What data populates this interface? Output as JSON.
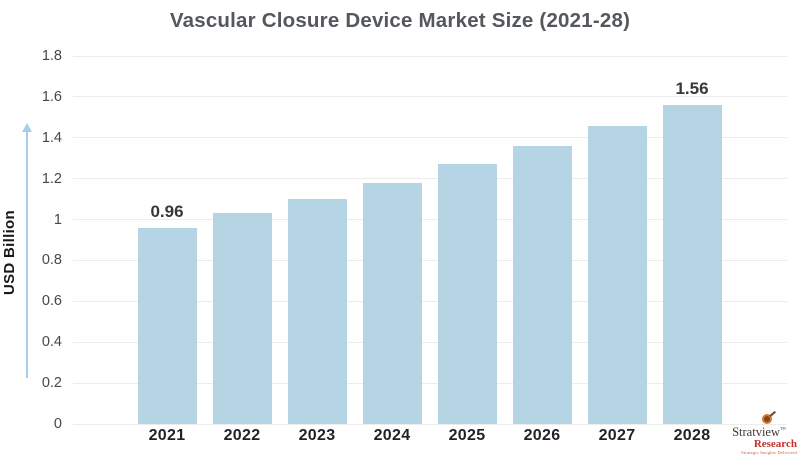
{
  "chart_data": {
    "type": "bar",
    "title": "Vascular Closure Device Market Size (2021-28)",
    "xlabel": "",
    "ylabel": "USD Billion",
    "categories": [
      "2021",
      "2022",
      "2023",
      "2024",
      "2025",
      "2026",
      "2027",
      "2028"
    ],
    "values": [
      0.96,
      1.03,
      1.1,
      1.18,
      1.27,
      1.36,
      1.46,
      1.56
    ],
    "bar_labels": [
      "0.96",
      "",
      "",
      "",
      "",
      "",
      "",
      "1.56"
    ],
    "ylim": [
      0,
      1.8
    ],
    "ytick_step": 0.2,
    "ytick_labels": [
      "0",
      "0.2",
      "0.4",
      "0.6",
      "0.8",
      "1",
      "1.2",
      "1.4",
      "1.6",
      "1.8"
    ],
    "grid": "horizontal",
    "legend": "none",
    "bar_color": "#b5d5e4",
    "gridline_color": "#ececec",
    "arrow_color": "#a5cfe8",
    "title_color": "#54585d",
    "axis_tick_color": "#454749",
    "category_tick_color": "#1f2227",
    "data_label_color": "#36393c"
  },
  "logo": {
    "brand": "Stratview",
    "trademark": "™",
    "division": "Research",
    "tagline": "Strategic Insights Delivered"
  }
}
